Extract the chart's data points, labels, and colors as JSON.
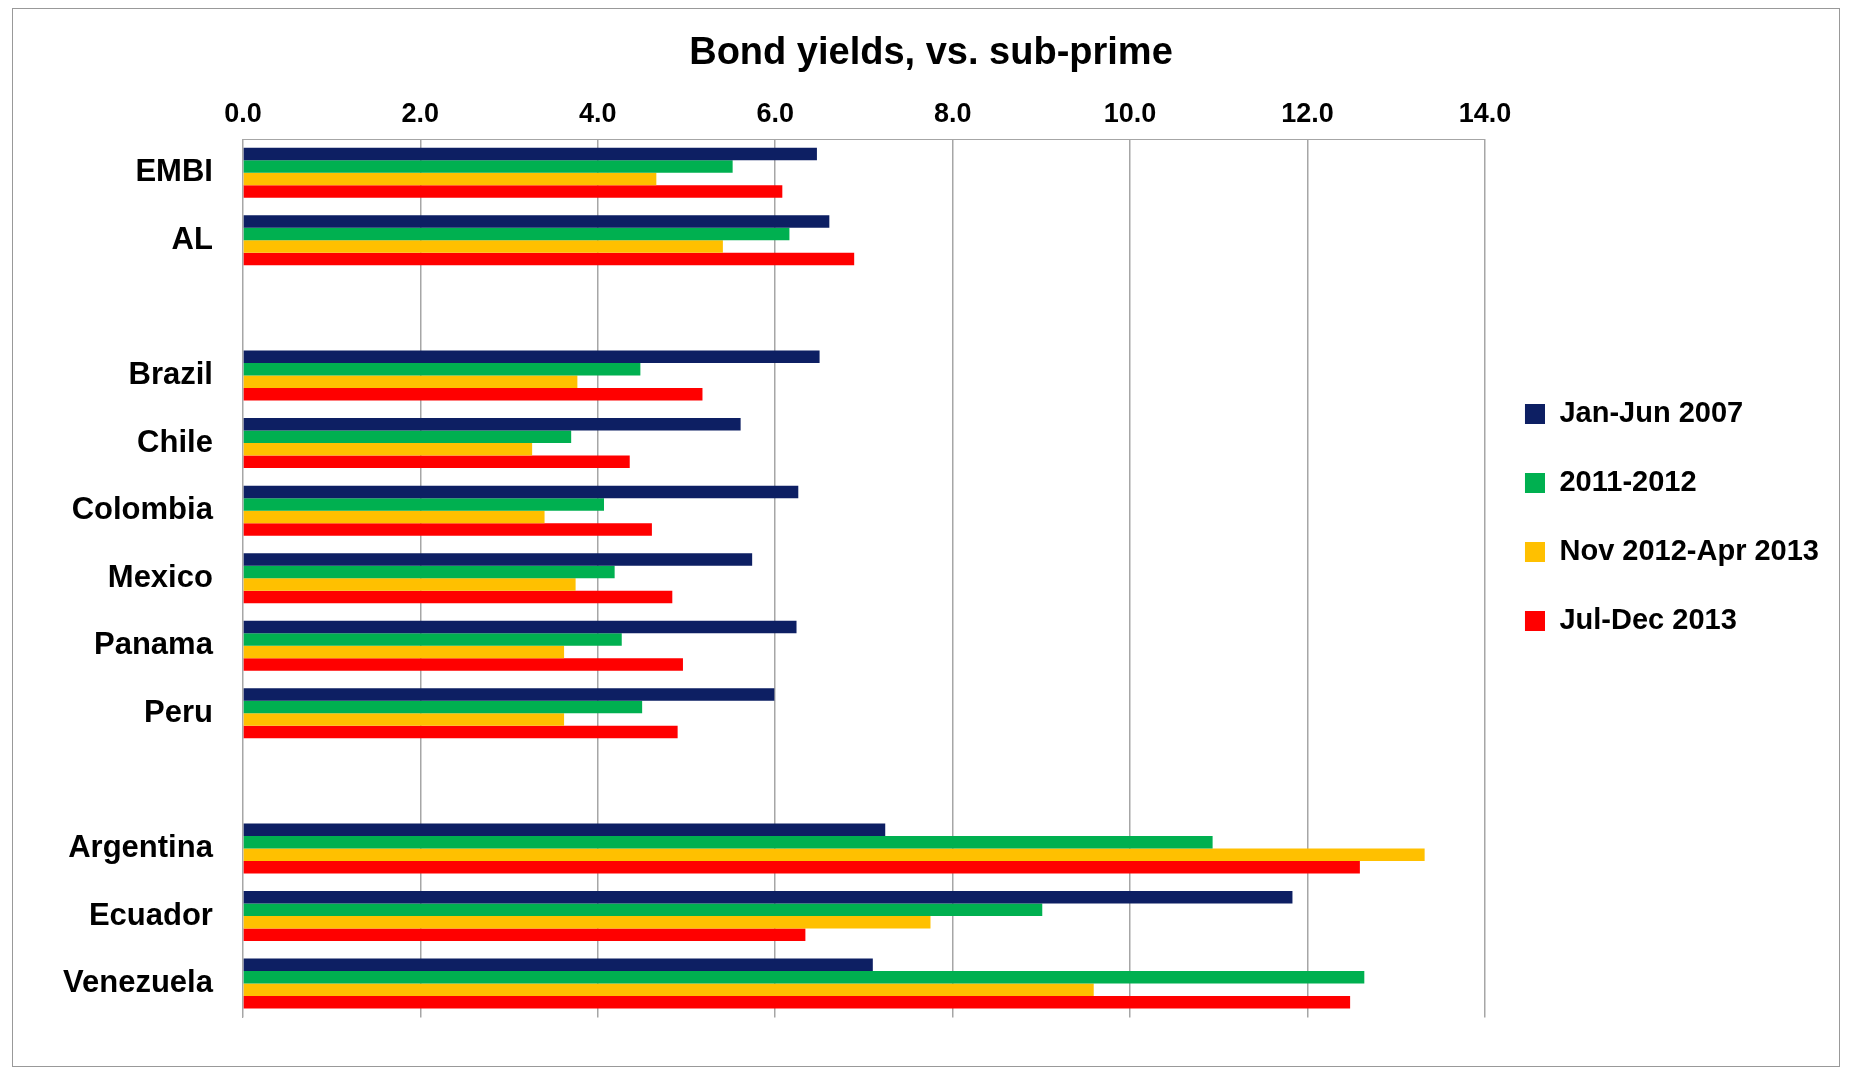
{
  "chart_data": {
    "type": "bar",
    "orientation": "horizontal",
    "title": "Bond yields, vs. sub-prime",
    "categories": [
      "EMBI",
      "AL",
      null,
      "Brazil",
      "Chile",
      "Colombia",
      "Mexico",
      "Panama",
      "Peru",
      null,
      "Argentina",
      "Ecuador",
      "Venezuela"
    ],
    "series": [
      {
        "name": "Jan-Jun 2007",
        "color": "#0d1f63",
        "values": [
          6.47,
          6.61,
          null,
          6.5,
          5.61,
          6.26,
          5.74,
          6.24,
          5.99,
          null,
          7.24,
          11.83,
          7.1
        ]
      },
      {
        "name": "2011-2012",
        "color": "#00b050",
        "values": [
          5.52,
          6.16,
          null,
          4.48,
          3.7,
          4.07,
          4.19,
          4.27,
          4.5,
          null,
          10.93,
          9.01,
          12.64
        ]
      },
      {
        "name": "Nov 2012-Apr 2013",
        "color": "#ffc000",
        "values": [
          4.66,
          5.41,
          null,
          3.77,
          3.26,
          3.4,
          3.75,
          3.62,
          3.62,
          null,
          13.32,
          7.75,
          9.59
        ]
      },
      {
        "name": "Jul-Dec 2013",
        "color": "#ff0000",
        "values": [
          6.08,
          6.89,
          null,
          5.18,
          4.36,
          4.61,
          4.84,
          4.96,
          4.9,
          null,
          12.59,
          6.34,
          12.48
        ]
      }
    ],
    "xlim": [
      0,
      14
    ],
    "xticks": [
      {
        "value": 0,
        "label": "0.0"
      },
      {
        "value": 2,
        "label": "2.0"
      },
      {
        "value": 4,
        "label": "4.0"
      },
      {
        "value": 6,
        "label": "6.0"
      },
      {
        "value": 8,
        "label": "8.0"
      },
      {
        "value": 10,
        "label": "10.0"
      },
      {
        "value": 12,
        "label": "12.0"
      },
      {
        "value": 14,
        "label": "14.0"
      }
    ],
    "grid": "x",
    "legend": "right"
  }
}
